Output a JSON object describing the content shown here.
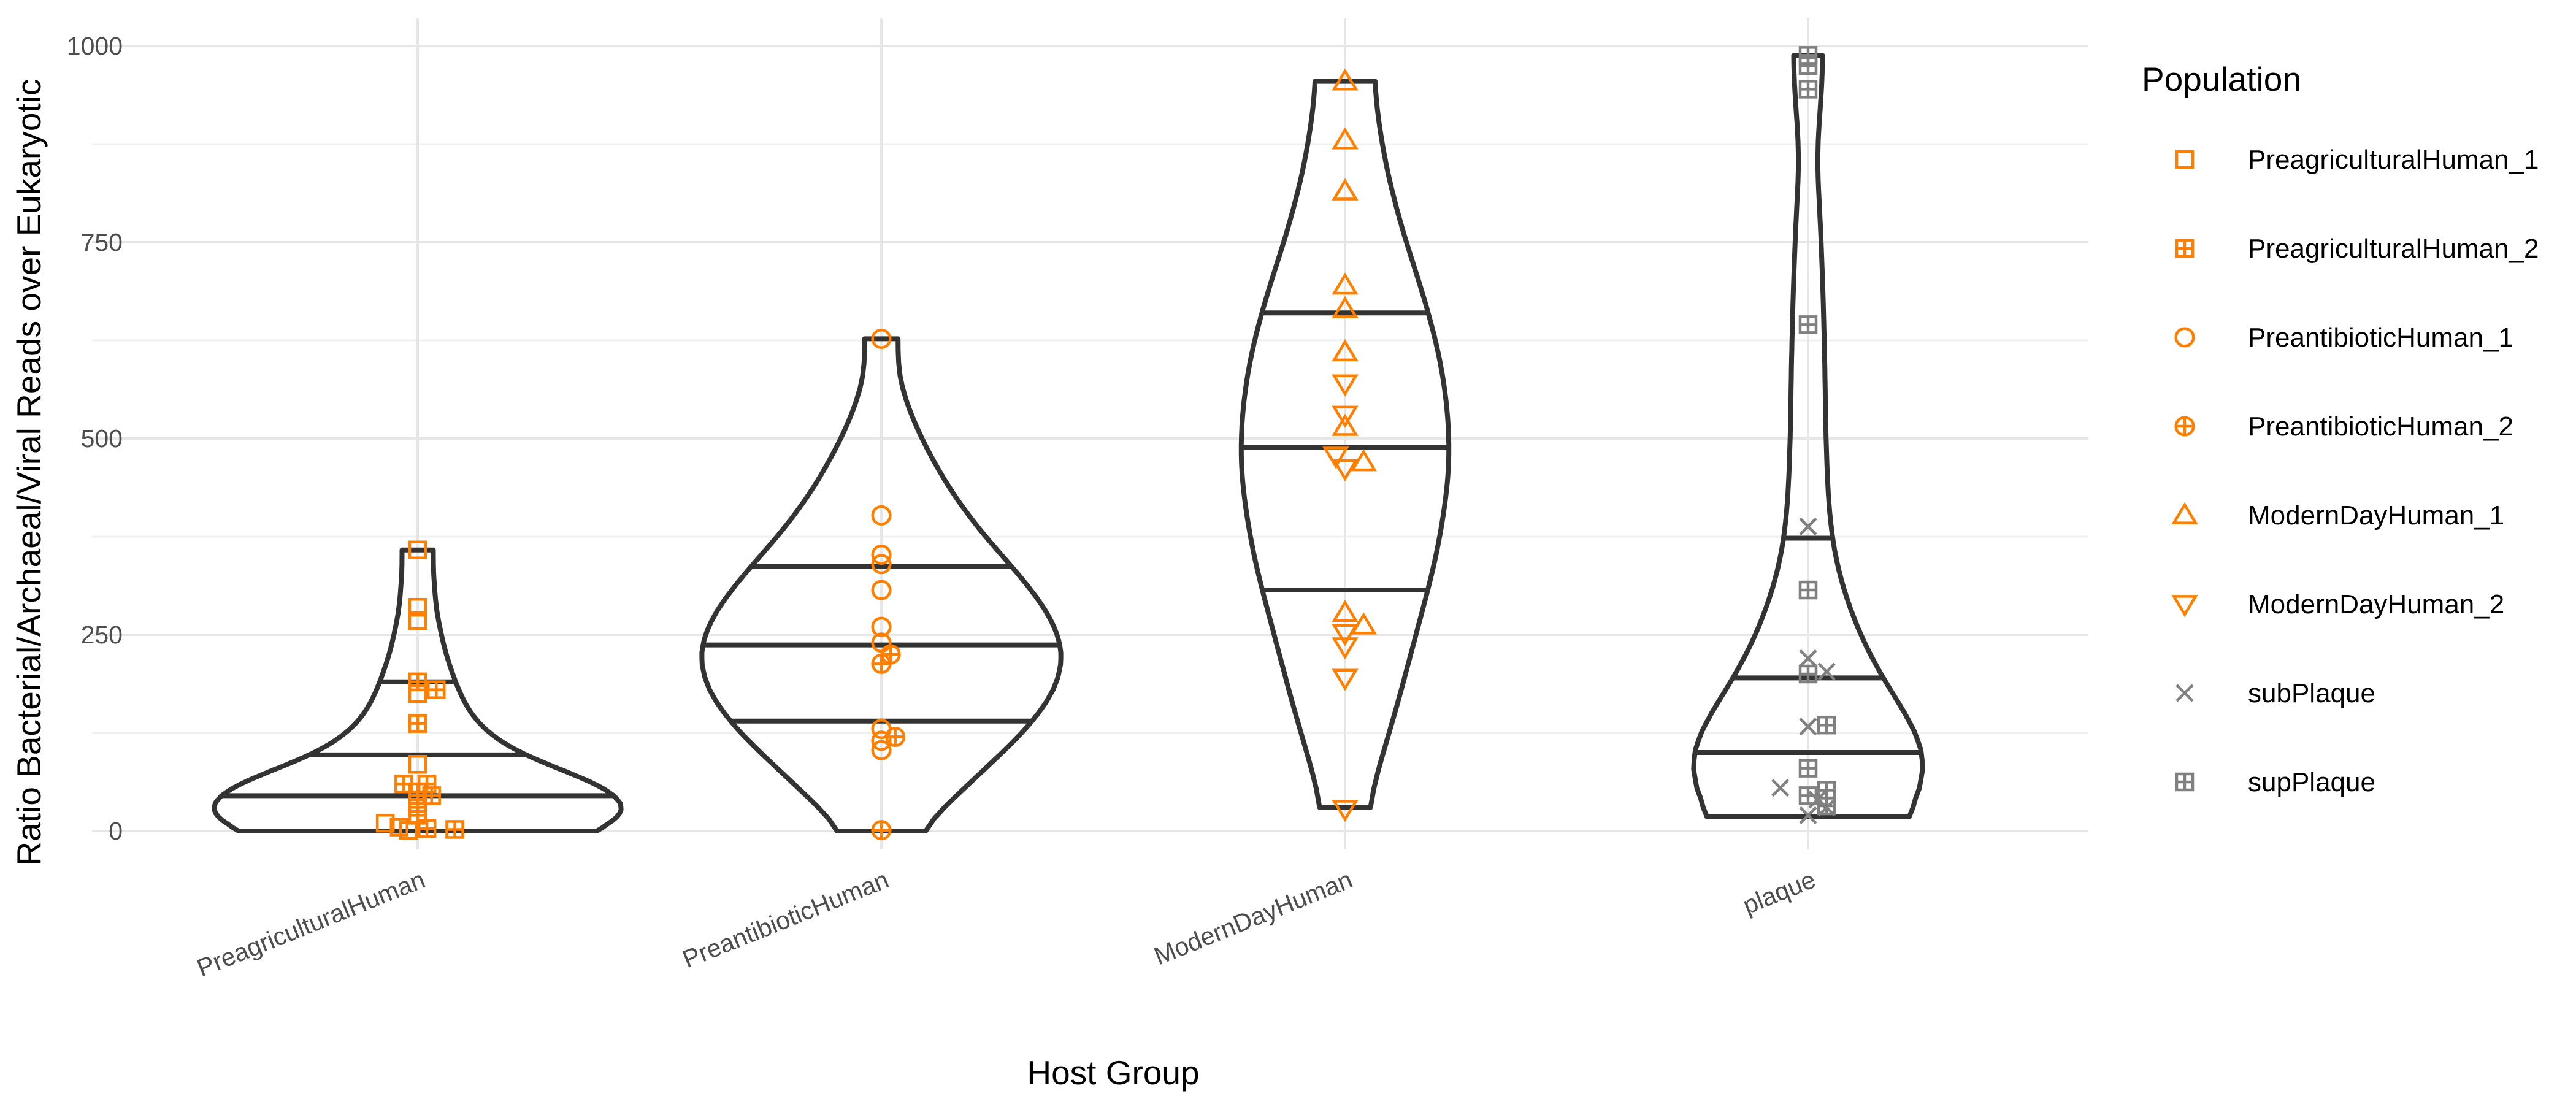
{
  "chart_data": {
    "type": "violin",
    "xlabel": "Host Group",
    "ylabel": "Ratio Bacterial/Archaeal/Viral Reads over Eukaryotic",
    "ylim": [
      0,
      1040
    ],
    "yticks": [
      0,
      250,
      500,
      750,
      1000
    ],
    "grid": true,
    "legend": {
      "title": "Population",
      "position": "right",
      "items": [
        {
          "label": "PreagriculturalHuman_1",
          "shape": "square",
          "color": "#FF7F00"
        },
        {
          "label": "PreagriculturalHuman_2",
          "shape": "square-plus",
          "color": "#FF7F00"
        },
        {
          "label": "PreantibioticHuman_1",
          "shape": "circle",
          "color": "#FF7F00"
        },
        {
          "label": "PreantibioticHuman_2",
          "shape": "circle-plus",
          "color": "#FF7F00"
        },
        {
          "label": "ModernDayHuman_1",
          "shape": "triangle-up",
          "color": "#FF7F00"
        },
        {
          "label": "ModernDayHuman_2",
          "shape": "triangle-down",
          "color": "#FF7F00"
        },
        {
          "label": "subPlaque",
          "shape": "cross",
          "color": "#808080"
        },
        {
          "label": "supPlaque",
          "shape": "square-plus",
          "color": "#808080"
        }
      ]
    },
    "groups": [
      {
        "category": "PreagriculturalHuman",
        "quantiles": [
          45,
          97,
          190
        ],
        "range": [
          0,
          358
        ],
        "violin": [
          [
            0,
            0.8
          ],
          [
            10,
            0.97
          ],
          [
            25,
            1.0
          ],
          [
            45,
            0.97
          ],
          [
            65,
            0.82
          ],
          [
            85,
            0.62
          ],
          [
            100,
            0.48
          ],
          [
            120,
            0.36
          ],
          [
            140,
            0.28
          ],
          [
            160,
            0.23
          ],
          [
            190,
            0.18
          ],
          [
            230,
            0.13
          ],
          [
            280,
            0.09
          ],
          [
            330,
            0.075
          ],
          [
            358,
            0.075
          ]
        ],
        "points": [
          {
            "y": 358,
            "pop": 0,
            "dx": 0
          },
          {
            "y": 285,
            "pop": 0,
            "dx": 0
          },
          {
            "y": 268,
            "pop": 0,
            "dx": 0
          },
          {
            "y": 190,
            "pop": 1,
            "dx": 0
          },
          {
            "y": 180,
            "pop": 1,
            "dx": 0.04
          },
          {
            "y": 175,
            "pop": 0,
            "dx": 0
          },
          {
            "y": 137,
            "pop": 1,
            "dx": 0
          },
          {
            "y": 85,
            "pop": 0,
            "dx": 0
          },
          {
            "y": 60,
            "pop": 1,
            "dx": -0.03
          },
          {
            "y": 60,
            "pop": 1,
            "dx": 0.02
          },
          {
            "y": 50,
            "pop": 1,
            "dx": 0.0
          },
          {
            "y": 45,
            "pop": 1,
            "dx": 0.03
          },
          {
            "y": 35,
            "pop": 1,
            "dx": 0
          },
          {
            "y": 20,
            "pop": 1,
            "dx": 0
          },
          {
            "y": 10,
            "pop": 0,
            "dx": -0.07
          },
          {
            "y": 5,
            "pop": 0,
            "dx": -0.04
          },
          {
            "y": 3,
            "pop": 1,
            "dx": 0.02
          },
          {
            "y": 2,
            "pop": 1,
            "dx": 0.08
          },
          {
            "y": 1,
            "pop": 0,
            "dx": -0.02
          }
        ]
      },
      {
        "category": "PreantibioticHuman",
        "quantiles": [
          140,
          237,
          337
        ],
        "range": [
          0,
          627
        ],
        "violin": [
          [
            0,
            0.18
          ],
          [
            30,
            0.3
          ],
          [
            80,
            0.5
          ],
          [
            130,
            0.7
          ],
          [
            180,
            0.84
          ],
          [
            230,
            0.88
          ],
          [
            280,
            0.8
          ],
          [
            330,
            0.65
          ],
          [
            380,
            0.48
          ],
          [
            430,
            0.34
          ],
          [
            480,
            0.23
          ],
          [
            530,
            0.14
          ],
          [
            580,
            0.08
          ],
          [
            627,
            0.08
          ]
        ],
        "points": [
          {
            "y": 627,
            "pop": 2,
            "dx": 0
          },
          {
            "y": 402,
            "pop": 2,
            "dx": 0
          },
          {
            "y": 352,
            "pop": 2,
            "dx": 0
          },
          {
            "y": 340,
            "pop": 2,
            "dx": 0
          },
          {
            "y": 307,
            "pop": 2,
            "dx": 0
          },
          {
            "y": 260,
            "pop": 2,
            "dx": 0
          },
          {
            "y": 240,
            "pop": 2,
            "dx": 0
          },
          {
            "y": 225,
            "pop": 3,
            "dx": 0.02
          },
          {
            "y": 213,
            "pop": 3,
            "dx": 0
          },
          {
            "y": 130,
            "pop": 2,
            "dx": 0
          },
          {
            "y": 120,
            "pop": 3,
            "dx": 0.03
          },
          {
            "y": 115,
            "pop": 2,
            "dx": 0
          },
          {
            "y": 103,
            "pop": 2,
            "dx": 0
          },
          {
            "y": 1,
            "pop": 3,
            "dx": 0
          }
        ]
      },
      {
        "category": "ModernDayHuman",
        "quantiles": [
          307,
          489,
          660
        ],
        "range": [
          30,
          955
        ],
        "violin": [
          [
            30,
            0.11
          ],
          [
            80,
            0.16
          ],
          [
            150,
            0.24
          ],
          [
            250,
            0.34
          ],
          [
            350,
            0.44
          ],
          [
            450,
            0.5
          ],
          [
            520,
            0.5
          ],
          [
            600,
            0.46
          ],
          [
            680,
            0.38
          ],
          [
            760,
            0.28
          ],
          [
            840,
            0.2
          ],
          [
            920,
            0.15
          ],
          [
            955,
            0.14
          ]
        ],
        "points": [
          {
            "y": 955,
            "pop": 4,
            "dx": 0
          },
          {
            "y": 880,
            "pop": 4,
            "dx": 0
          },
          {
            "y": 815,
            "pop": 4,
            "dx": 0
          },
          {
            "y": 695,
            "pop": 4,
            "dx": 0
          },
          {
            "y": 665,
            "pop": 4,
            "dx": 0
          },
          {
            "y": 610,
            "pop": 4,
            "dx": 0
          },
          {
            "y": 570,
            "pop": 5,
            "dx": 0
          },
          {
            "y": 530,
            "pop": 5,
            "dx": 0
          },
          {
            "y": 515,
            "pop": 4,
            "dx": 0
          },
          {
            "y": 478,
            "pop": 5,
            "dx": -0.02
          },
          {
            "y": 470,
            "pop": 4,
            "dx": 0.04
          },
          {
            "y": 462,
            "pop": 5,
            "dx": 0
          },
          {
            "y": 278,
            "pop": 4,
            "dx": 0
          },
          {
            "y": 262,
            "pop": 4,
            "dx": 0.04
          },
          {
            "y": 252,
            "pop": 5,
            "dx": 0
          },
          {
            "y": 235,
            "pop": 5,
            "dx": 0
          },
          {
            "y": 195,
            "pop": 5,
            "dx": 0
          },
          {
            "y": 28,
            "pop": 5,
            "dx": 0
          }
        ]
      },
      {
        "category": "plaque",
        "quantiles": [
          100,
          195,
          373
        ],
        "range": [
          18,
          988
        ],
        "violin": [
          [
            18,
            0.45
          ],
          [
            50,
            0.56
          ],
          [
            100,
            0.58
          ],
          [
            150,
            0.47
          ],
          [
            200,
            0.34
          ],
          [
            260,
            0.23
          ],
          [
            330,
            0.14
          ],
          [
            400,
            0.1
          ],
          [
            500,
            0.085
          ],
          [
            600,
            0.08
          ],
          [
            700,
            0.07
          ],
          [
            800,
            0.055
          ],
          [
            850,
            0.04
          ],
          [
            900,
            0.05
          ],
          [
            950,
            0.07
          ],
          [
            988,
            0.07
          ]
        ],
        "points": [
          {
            "y": 988,
            "pop": 7,
            "dx": 0
          },
          {
            "y": 975,
            "pop": 7,
            "dx": 0
          },
          {
            "y": 945,
            "pop": 7,
            "dx": 0
          },
          {
            "y": 645,
            "pop": 7,
            "dx": 0
          },
          {
            "y": 388,
            "pop": 6,
            "dx": 0
          },
          {
            "y": 307,
            "pop": 7,
            "dx": 0
          },
          {
            "y": 220,
            "pop": 6,
            "dx": 0
          },
          {
            "y": 203,
            "pop": 6,
            "dx": 0.04
          },
          {
            "y": 200,
            "pop": 7,
            "dx": 0
          },
          {
            "y": 135,
            "pop": 7,
            "dx": 0.04
          },
          {
            "y": 133,
            "pop": 6,
            "dx": 0
          },
          {
            "y": 80,
            "pop": 7,
            "dx": 0
          },
          {
            "y": 55,
            "pop": 6,
            "dx": -0.06
          },
          {
            "y": 52,
            "pop": 7,
            "dx": 0.04
          },
          {
            "y": 45,
            "pop": 7,
            "dx": 0
          },
          {
            "y": 40,
            "pop": 6,
            "dx": 0.02
          },
          {
            "y": 32,
            "pop": 7,
            "dx": 0.04
          },
          {
            "y": 30,
            "pop": 6,
            "dx": 0.04
          },
          {
            "y": 20,
            "pop": 6,
            "dx": 0
          }
        ]
      }
    ]
  }
}
